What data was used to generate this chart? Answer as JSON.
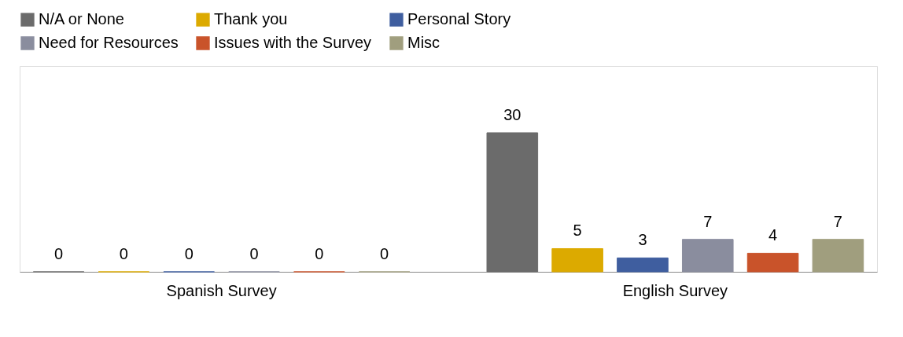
{
  "chart_data": {
    "type": "bar",
    "categories": [
      "Spanish Survey",
      "English Survey"
    ],
    "series": [
      {
        "name": "N/A or None",
        "color": "#6b6b6b",
        "values": [
          0,
          30
        ]
      },
      {
        "name": "Thank you",
        "color": "#dcaa00",
        "values": [
          0,
          5
        ]
      },
      {
        "name": "Personal Story",
        "color": "#3f5e9f",
        "values": [
          0,
          3
        ]
      },
      {
        "name": "Need for Resources",
        "color": "#8a8d9e",
        "values": [
          0,
          7
        ]
      },
      {
        "name": "Issues with the Survey",
        "color": "#c9532a",
        "values": [
          0,
          4
        ]
      },
      {
        "name": "Misc",
        "color": "#a09e7e",
        "values": [
          0,
          7
        ]
      }
    ],
    "data_labels": true,
    "legend": "top",
    "grid": false
  }
}
